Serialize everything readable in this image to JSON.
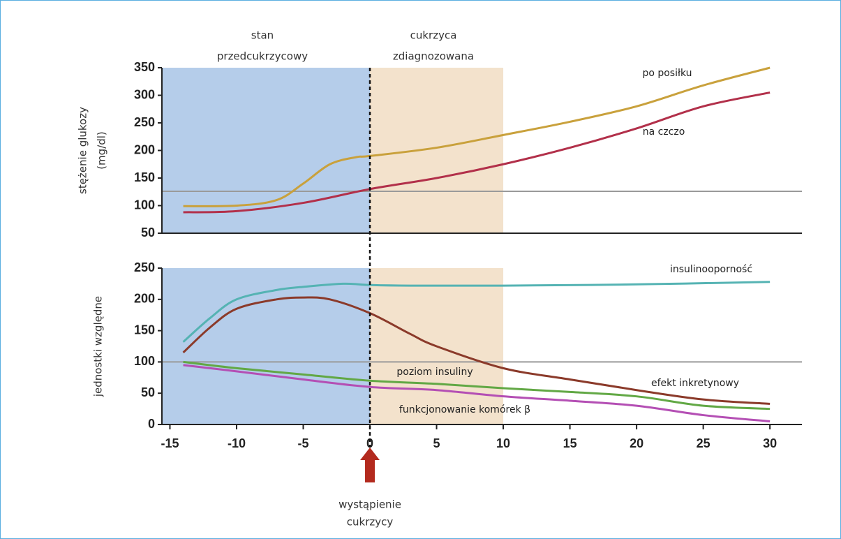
{
  "chart_data": [
    {
      "type": "line",
      "regions": [
        {
          "label": [
            "stan",
            "przedcukrzycowy"
          ],
          "from": -15.6,
          "to": 0,
          "color": "#b5cdea"
        },
        {
          "label": [
            "cukrzyca",
            "zdiagnozowana"
          ],
          "from": 0,
          "to": 10,
          "color": "#f3e2cc"
        }
      ],
      "ylabel": [
        "stężenie glukozy",
        "(mg/dl)"
      ],
      "xlim": [
        -15.6,
        32.4
      ],
      "ylim": [
        50,
        350
      ],
      "yticks": [
        50,
        100,
        150,
        200,
        250,
        300,
        350
      ],
      "hlines": [
        126
      ],
      "vline": 0,
      "series": [
        {
          "name": "po posiłku",
          "color": "#c9a13c",
          "x": [
            -14,
            -10,
            -7,
            -5,
            -3,
            -1,
            0,
            5,
            10,
            15,
            20,
            25,
            30
          ],
          "values": [
            99,
            100,
            110,
            140,
            175,
            188,
            190,
            205,
            228,
            252,
            280,
            318,
            350
          ]
        },
        {
          "name": "na czczo",
          "color": "#b2304a",
          "x": [
            -14,
            -10,
            -5,
            0,
            5,
            10,
            15,
            20,
            25,
            30
          ],
          "values": [
            88,
            90,
            105,
            130,
            150,
            175,
            205,
            240,
            280,
            305
          ]
        }
      ]
    },
    {
      "type": "line",
      "regions": [
        {
          "from": -15.6,
          "to": 0,
          "color": "#b5cdea"
        },
        {
          "from": 0,
          "to": 10,
          "color": "#f3e2cc"
        }
      ],
      "ylabel": [
        "jednostki względne"
      ],
      "xlim": [
        -15.6,
        32.4
      ],
      "xticks": [
        -15,
        -10,
        -5,
        0,
        5,
        10,
        15,
        20,
        25,
        30
      ],
      "ylim": [
        0,
        250
      ],
      "yticks": [
        0,
        50,
        100,
        150,
        200,
        250
      ],
      "hlines": [
        100
      ],
      "annotation": [
        "wystąpienie",
        "cukrzycy"
      ],
      "series": [
        {
          "name": "insulinooporność",
          "color": "#55b3b3",
          "x": [
            -14,
            -12,
            -10,
            -7,
            -5,
            -2,
            0,
            3,
            10,
            20,
            30
          ],
          "values": [
            132,
            170,
            200,
            215,
            220,
            225,
            223,
            222,
            222,
            224,
            228
          ]
        },
        {
          "name": "poziom insuliny",
          "color": "#8b3a2a",
          "x": [
            -14,
            -12,
            -10,
            -7,
            -5,
            -3,
            0,
            3,
            5,
            10,
            15,
            20,
            25,
            30
          ],
          "values": [
            115,
            155,
            185,
            200,
            203,
            200,
            178,
            145,
            125,
            90,
            72,
            55,
            40,
            33
          ]
        },
        {
          "name": "efekt inkretynowy",
          "color": "#62a845",
          "x": [
            -14,
            -10,
            -5,
            0,
            5,
            10,
            15,
            20,
            25,
            30
          ],
          "values": [
            100,
            90,
            80,
            70,
            65,
            58,
            52,
            45,
            30,
            25
          ]
        },
        {
          "name": "funkcjonowanie komórek β",
          "color": "#b44fb4",
          "x": [
            -14,
            -10,
            -5,
            0,
            5,
            10,
            15,
            20,
            25,
            30
          ],
          "values": [
            95,
            85,
            72,
            60,
            55,
            45,
            38,
            30,
            15,
            5
          ]
        }
      ]
    }
  ]
}
